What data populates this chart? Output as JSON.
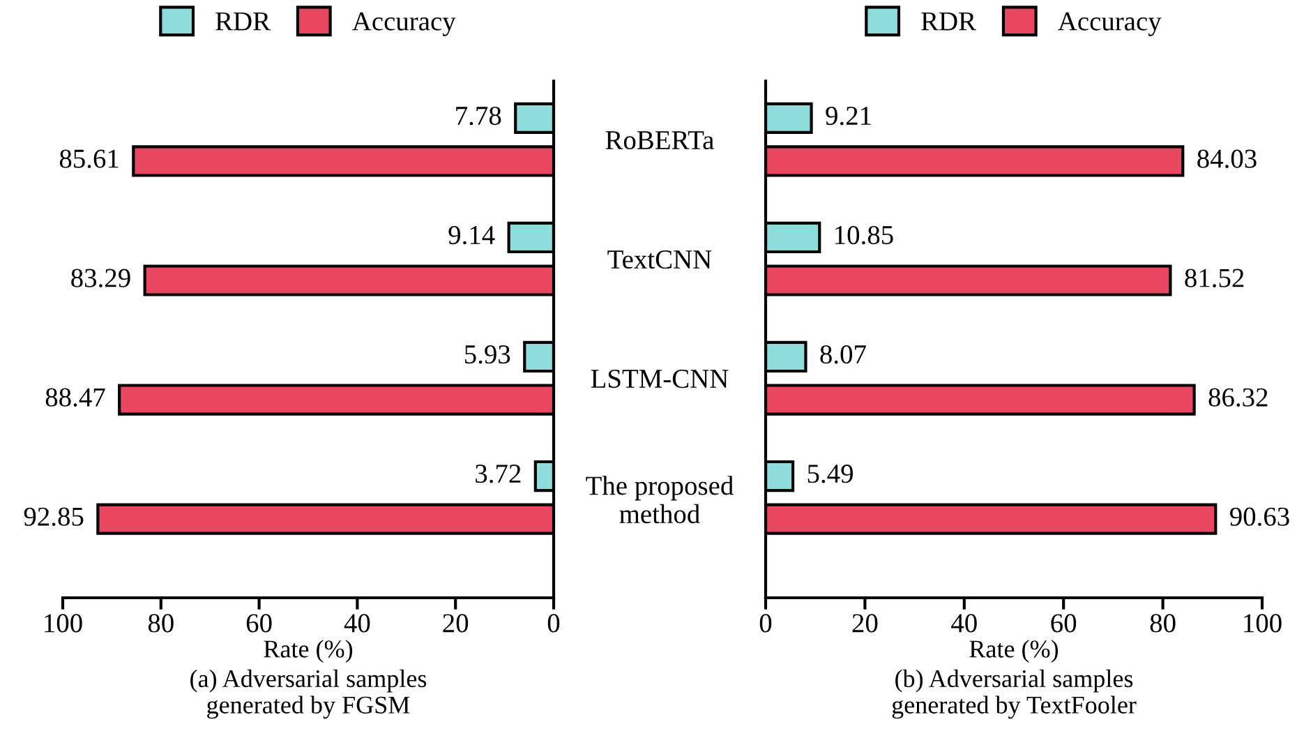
{
  "chart_data": [
    {
      "type": "bar",
      "orientation": "horizontal",
      "categories": [
        "RoBERTa",
        "TextCNN",
        "LSTM-CNN",
        "The proposed\nmethod"
      ],
      "series": [
        {
          "name": "RDR",
          "color": "#8fdcdc",
          "values": [
            7.78,
            9.14,
            5.93,
            3.72
          ]
        },
        {
          "name": "Accuracy",
          "color": "#e8475f",
          "values": [
            85.61,
            83.29,
            88.47,
            92.85
          ]
        }
      ],
      "xlim": [
        100,
        0
      ],
      "xticks": [
        100,
        80,
        60,
        40,
        20,
        0
      ],
      "xlabel": "Rate (%)",
      "title": "(a) Adversarial samples\ngenerated by FGSM",
      "data_labels": true,
      "legend": "top",
      "grid": false
    },
    {
      "type": "bar",
      "orientation": "horizontal",
      "categories": [
        null,
        null,
        null,
        null
      ],
      "series": [
        {
          "name": "RDR",
          "color": "#8fdcdc",
          "values": [
            9.21,
            10.85,
            8.07,
            5.49
          ]
        },
        {
          "name": "Accuracy",
          "color": "#e8475f",
          "values": [
            84.03,
            81.52,
            86.32,
            90.63
          ]
        }
      ],
      "xlim": [
        0,
        100
      ],
      "xticks": [
        0,
        20,
        40,
        60,
        80,
        100
      ],
      "xlabel": "Rate (%)",
      "title": "(b) Adversarial samples\ngenerated by TextFooler",
      "data_labels": true,
      "legend": "top",
      "grid": false,
      "tick_labels": "x"
    }
  ]
}
